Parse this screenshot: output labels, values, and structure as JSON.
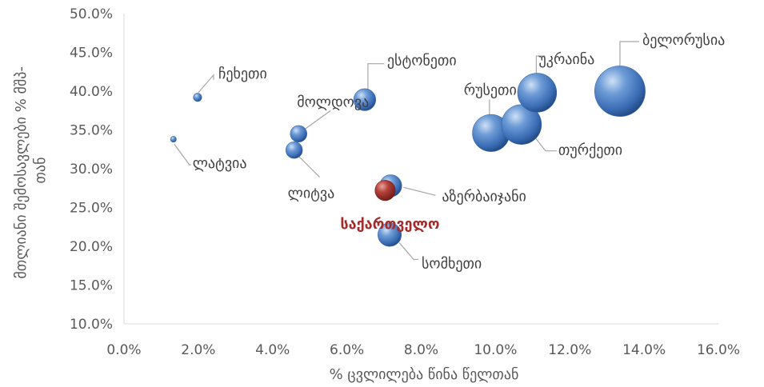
{
  "chart_data": {
    "type": "bubble",
    "xlabel": "%  ცვლილება წინა წელთან",
    "ylabel_lines": [
      "მთლიანი შემოსავლები % მშპ-",
      "თან"
    ],
    "xlim": [
      0,
      0.16
    ],
    "ylim": [
      0.1,
      0.5
    ],
    "x_ticks": [
      "0.0%",
      "2.0%",
      "4.0%",
      "6.0%",
      "8.0%",
      "10.0%",
      "12.0%",
      "14.0%",
      "16.0%"
    ],
    "y_ticks": [
      "10.0%",
      "15.0%",
      "20.0%",
      "25.0%",
      "30.0%",
      "35.0%",
      "40.0%",
      "45.0%",
      "50.0%"
    ],
    "grid": false,
    "legend": "none",
    "colors": {
      "default": "#4f81bd",
      "highlight": "#a52a2a"
    },
    "points": [
      {
        "label": "ჩეხეთი",
        "x": 0.0198,
        "y": 0.392,
        "size": 1,
        "highlight": false
      },
      {
        "label": "ლატვია",
        "x": 0.0133,
        "y": 0.338,
        "size": 0.5,
        "highlight": false
      },
      {
        "label": "მოლდოვა",
        "x": 0.047,
        "y": 0.345,
        "size": 4,
        "highlight": false
      },
      {
        "label": "ლიტვა",
        "x": 0.0458,
        "y": 0.324,
        "size": 4,
        "highlight": false
      },
      {
        "label": "ესტონეთი",
        "x": 0.0648,
        "y": 0.389,
        "size": 7,
        "highlight": false
      },
      {
        "label": "აზერბაიჯანი",
        "x": 0.0718,
        "y": 0.278,
        "size": 7,
        "highlight": false
      },
      {
        "label": "საქართველო",
        "x": 0.0703,
        "y": 0.272,
        "size": 6,
        "highlight": true
      },
      {
        "label": "სომხეთი",
        "x": 0.0715,
        "y": 0.215,
        "size": 8,
        "highlight": false
      },
      {
        "label": "რუსეთი",
        "x": 0.0988,
        "y": 0.346,
        "size": 20,
        "highlight": false
      },
      {
        "label": "თურქეთი",
        "x": 0.107,
        "y": 0.357,
        "size": 23,
        "highlight": false
      },
      {
        "label": "უკრაინა",
        "x": 0.1112,
        "y": 0.398,
        "size": 22,
        "highlight": false
      },
      {
        "label": "ბელორუსია",
        "x": 0.1335,
        "y": 0.4,
        "size": 37,
        "highlight": false
      }
    ]
  }
}
